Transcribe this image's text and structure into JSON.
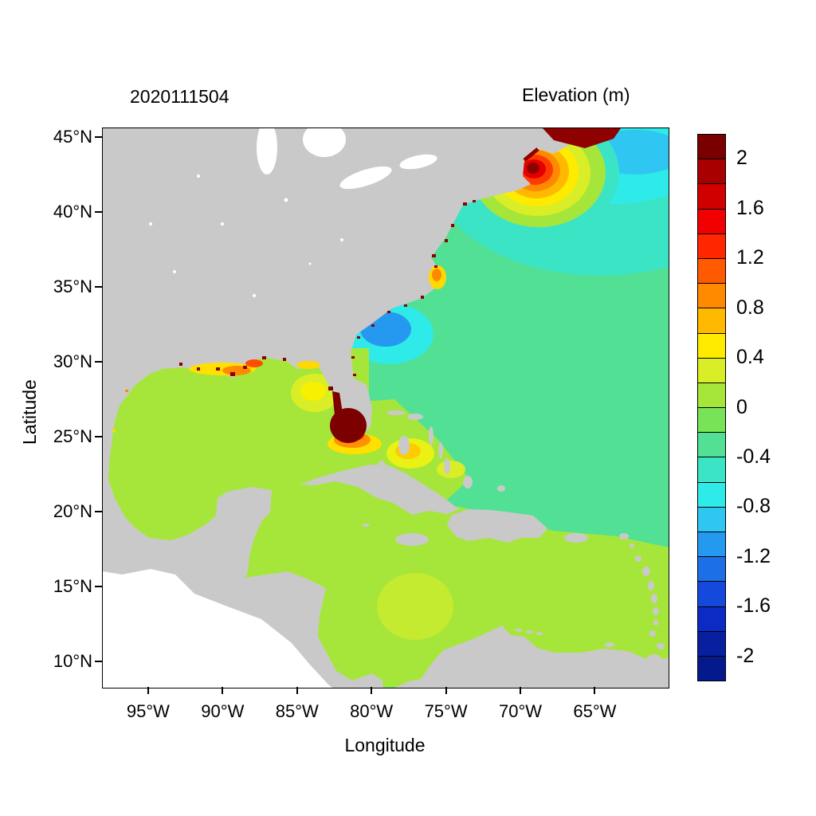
{
  "figure": {
    "timestamp_title": "2020111504",
    "colorbar_title": "Elevation (m)"
  },
  "axes": {
    "x_label": "Longitude",
    "y_label": "Latitude"
  },
  "colorbar": {
    "max": 2.2,
    "min": -2.2,
    "segment_colors": [
      "#7A0000",
      "#A80000",
      "#D00000",
      "#F00000",
      "#FF2600",
      "#FF5A00",
      "#FF8A00",
      "#FFB900",
      "#FFEB00",
      "#D9EE26",
      "#A6E63A",
      "#79E357",
      "#52E094",
      "#3CE4C6",
      "#2EEAE8",
      "#2FC7F2",
      "#2599F0",
      "#1D6FE8",
      "#1449DB",
      "#0B2BC4",
      "#07209F",
      "#041A8C"
    ],
    "ticks": [
      {
        "label": "2",
        "value": 2
      },
      {
        "label": "1.6",
        "value": 1.6
      },
      {
        "label": "1.2",
        "value": 1.2
      },
      {
        "label": "0.8",
        "value": 0.8
      },
      {
        "label": "0.4",
        "value": 0.4
      },
      {
        "label": "0",
        "value": 0
      },
      {
        "label": "-0.4",
        "value": -0.4
      },
      {
        "label": "-0.8",
        "value": -0.8
      },
      {
        "label": "-1.2",
        "value": -1.2
      },
      {
        "label": "-1.6",
        "value": -1.6
      },
      {
        "label": "-2",
        "value": -2
      }
    ]
  },
  "map": {
    "land_color": "#C9C9C9",
    "outside_domain_color": "#FFFFFF",
    "ocean_base_color": "#52E094"
  },
  "chart_data": {
    "type": "heatmap",
    "title": "Elevation (m)",
    "subtitle": "2020111504",
    "xlabel": "Longitude",
    "ylabel": "Latitude",
    "units": "m",
    "x_ticks": [
      {
        "label": "95°W",
        "value": 95
      },
      {
        "label": "90°W",
        "value": 90
      },
      {
        "label": "85°W",
        "value": 85
      },
      {
        "label": "80°W",
        "value": 80
      },
      {
        "label": "75°W",
        "value": 75
      },
      {
        "label": "70°W",
        "value": 70
      },
      {
        "label": "65°W",
        "value": 65
      }
    ],
    "y_ticks": [
      {
        "label": "45°N",
        "value": 45
      },
      {
        "label": "40°N",
        "value": 40
      },
      {
        "label": "35°N",
        "value": 35
      },
      {
        "label": "30°N",
        "value": 30
      },
      {
        "label": "25°N",
        "value": 25
      },
      {
        "label": "20°N",
        "value": 20
      },
      {
        "label": "15°N",
        "value": 15
      },
      {
        "label": "10°N",
        "value": 10
      }
    ],
    "x_range_deg_west": [
      98.1,
      60.1
    ],
    "y_range_deg_north": [
      8.3,
      45.64
    ],
    "colorbar_range": [
      -2.2,
      2.2
    ],
    "colorbar_step": 0.2,
    "legend_position": "right",
    "grid": false,
    "regions": [
      {
        "region": "Gulf of Maine / New England shelf surge bullseye",
        "elevation_m": "0.8 to >2, maximum at the coast"
      },
      {
        "region": "Nova Scotia / Bay of Fundy shoreline",
        "elevation_m": "> 2"
      },
      {
        "region": "Open northwest Atlantic",
        "elevation_m": "-0.2 to -0.8"
      },
      {
        "region": "Patch offshore of the Carolinas",
        "elevation_m": "-0.8 to -1.2"
      },
      {
        "region": "Pamlico Sound / Outer Banks spot",
        "elevation_m": "0.4 to 0.8"
      },
      {
        "region": "Gulf of Mexico basin",
        "elevation_m": "0 to 0.2"
      },
      {
        "region": "Louisiana-Mississippi coastal band",
        "elevation_m": "0.4 to 1.6 with >2 specks"
      },
      {
        "region": "West-central Florida shelf blob",
        "elevation_m": "0.2 to 0.6"
      },
      {
        "region": "South Florida / Everglades flood core",
        "elevation_m": "> 2 core with 0.4 to 1.2 ring"
      },
      {
        "region": "Bahama banks arcs",
        "elevation_m": "0.4 to 0.8"
      },
      {
        "region": "Caribbean Sea",
        "elevation_m": "0 to 0.2"
      },
      {
        "region": "Central Caribbean circular blob near 77W 14N",
        "elevation_m": "0.2 to 0.4"
      },
      {
        "region": "Scattered flooded shoreline pixels along East and Gulf coasts",
        "elevation_m": "> 2"
      }
    ]
  }
}
